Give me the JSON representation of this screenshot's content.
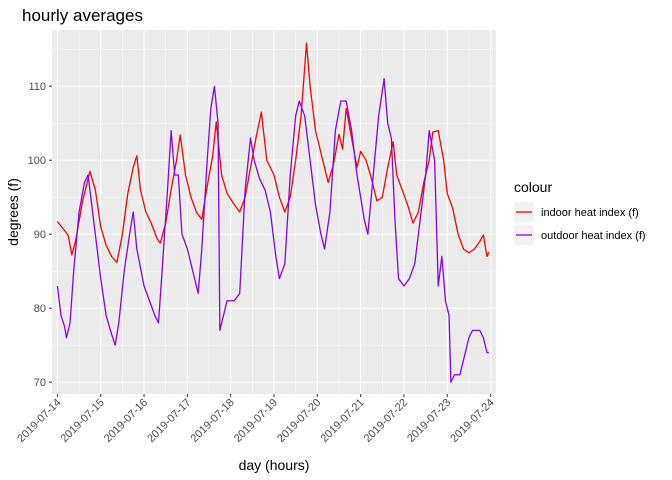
{
  "chart_data": {
    "type": "line",
    "title": "hourly averages",
    "xlabel": "day (hours)",
    "ylabel": "degrees (f)",
    "legend_title": "colour",
    "legend_position": "right",
    "grid": true,
    "xlim": [
      "2019-07-13T21:00",
      "2019-07-24T03:00"
    ],
    "ylim": [
      68.4,
      117.6
    ],
    "x_ticks": [
      "2019-07-14",
      "2019-07-15",
      "2019-07-16",
      "2019-07-17",
      "2019-07-18",
      "2019-07-19",
      "2019-07-20",
      "2019-07-21",
      "2019-07-22",
      "2019-07-23",
      "2019-07-24"
    ],
    "y_ticks": [
      70,
      80,
      90,
      100,
      110
    ],
    "series": [
      {
        "name": "indoor heat index (f)",
        "color": "#ff0000",
        "points": [
          [
            "2019-07-14T00:00",
            91.7
          ],
          [
            "2019-07-14T03:00",
            90.8
          ],
          [
            "2019-07-14T06:00",
            89.8
          ],
          [
            "2019-07-14T08:00",
            87.2
          ],
          [
            "2019-07-14T10:00",
            89.0
          ],
          [
            "2019-07-14T14:00",
            94.5
          ],
          [
            "2019-07-14T18:00",
            98.5
          ],
          [
            "2019-07-14T21:00",
            96.0
          ],
          [
            "2019-07-15T00:00",
            91.0
          ],
          [
            "2019-07-15T03:00",
            88.5
          ],
          [
            "2019-07-15T06:00",
            87.0
          ],
          [
            "2019-07-15T09:00",
            86.2
          ],
          [
            "2019-07-15T12:00",
            90.0
          ],
          [
            "2019-07-15T15:00",
            95.5
          ],
          [
            "2019-07-15T18:00",
            99.0
          ],
          [
            "2019-07-15T20:00",
            100.6
          ],
          [
            "2019-07-15T22:00",
            96.0
          ],
          [
            "2019-07-16T01:00",
            93.0
          ],
          [
            "2019-07-16T04:00",
            91.5
          ],
          [
            "2019-07-16T07:00",
            89.5
          ],
          [
            "2019-07-16T09:00",
            88.8
          ],
          [
            "2019-07-16T12:00",
            91.5
          ],
          [
            "2019-07-16T15:00",
            96.0
          ],
          [
            "2019-07-16T18:00",
            100.0
          ],
          [
            "2019-07-16T20:00",
            103.4
          ],
          [
            "2019-07-16T23:00",
            98.0
          ],
          [
            "2019-07-17T02:00",
            95.0
          ],
          [
            "2019-07-17T05:00",
            93.0
          ],
          [
            "2019-07-17T08:00",
            92.0
          ],
          [
            "2019-07-17T11:00",
            96.5
          ],
          [
            "2019-07-17T14:00",
            100.5
          ],
          [
            "2019-07-17T16:00",
            105.2
          ],
          [
            "2019-07-17T19:00",
            98.0
          ],
          [
            "2019-07-17T22:00",
            95.5
          ],
          [
            "2019-07-18T02:00",
            94.0
          ],
          [
            "2019-07-18T05:00",
            93.0
          ],
          [
            "2019-07-18T08:00",
            95.0
          ],
          [
            "2019-07-18T11:00",
            99.0
          ],
          [
            "2019-07-18T14:00",
            103.0
          ],
          [
            "2019-07-18T17:00",
            106.5
          ],
          [
            "2019-07-18T20:00",
            100.0
          ],
          [
            "2019-07-19T00:00",
            98.0
          ],
          [
            "2019-07-19T03:00",
            95.0
          ],
          [
            "2019-07-19T06:00",
            93.0
          ],
          [
            "2019-07-19T09:00",
            95.0
          ],
          [
            "2019-07-19T12:00",
            100.0
          ],
          [
            "2019-07-19T15:00",
            106.0
          ],
          [
            "2019-07-19T18:00",
            115.8
          ],
          [
            "2019-07-19T20:00",
            110.0
          ],
          [
            "2019-07-19T23:00",
            104.0
          ],
          [
            "2019-07-20T03:00",
            100.0
          ],
          [
            "2019-07-20T06:00",
            97.0
          ],
          [
            "2019-07-20T09:00",
            99.5
          ],
          [
            "2019-07-20T12:00",
            103.5
          ],
          [
            "2019-07-20T14:00",
            101.5
          ],
          [
            "2019-07-20T16:00",
            107.0
          ],
          [
            "2019-07-20T19:00",
            103.0
          ],
          [
            "2019-07-20T22:00",
            99.0
          ],
          [
            "2019-07-21T00:00",
            101.2
          ],
          [
            "2019-07-21T03:00",
            100.0
          ],
          [
            "2019-07-21T06:00",
            97.5
          ],
          [
            "2019-07-21T09:00",
            94.5
          ],
          [
            "2019-07-21T12:00",
            95.0
          ],
          [
            "2019-07-21T15:00",
            99.0
          ],
          [
            "2019-07-21T18:00",
            102.5
          ],
          [
            "2019-07-21T20:00",
            98.0
          ],
          [
            "2019-07-21T23:00",
            96.0
          ],
          [
            "2019-07-22T02:00",
            94.0
          ],
          [
            "2019-07-22T05:00",
            91.5
          ],
          [
            "2019-07-22T08:00",
            93.0
          ],
          [
            "2019-07-22T11:00",
            97.0
          ],
          [
            "2019-07-22T14:00",
            100.0
          ],
          [
            "2019-07-22T16:00",
            103.8
          ],
          [
            "2019-07-22T19:00",
            104.0
          ],
          [
            "2019-07-22T22:00",
            100.0
          ],
          [
            "2019-07-23T00:00",
            95.5
          ],
          [
            "2019-07-23T03:00",
            93.5
          ],
          [
            "2019-07-23T06:00",
            90.0
          ],
          [
            "2019-07-23T09:00",
            88.0
          ],
          [
            "2019-07-23T12:00",
            87.5
          ],
          [
            "2019-07-23T15:00",
            88.0
          ],
          [
            "2019-07-23T18:00",
            89.0
          ],
          [
            "2019-07-23T20:00",
            89.9
          ],
          [
            "2019-07-23T22:00",
            87.0
          ],
          [
            "2019-07-23T23:00",
            87.6
          ]
        ]
      },
      {
        "name": "outdoor heat index (f)",
        "color": "#8b00ee",
        "points": [
          [
            "2019-07-14T00:00",
            83.0
          ],
          [
            "2019-07-14T02:00",
            79.0
          ],
          [
            "2019-07-14T04:00",
            77.5
          ],
          [
            "2019-07-14T05:00",
            76.0
          ],
          [
            "2019-07-14T07:00",
            78.0
          ],
          [
            "2019-07-14T09:00",
            85.0
          ],
          [
            "2019-07-14T12:00",
            93.0
          ],
          [
            "2019-07-14T15:00",
            97.0
          ],
          [
            "2019-07-14T17:00",
            98.0
          ],
          [
            "2019-07-14T20:00",
            92.0
          ],
          [
            "2019-07-15T00:00",
            84.0
          ],
          [
            "2019-07-15T03:00",
            79.0
          ],
          [
            "2019-07-15T06:00",
            76.5
          ],
          [
            "2019-07-15T08:00",
            75.0
          ],
          [
            "2019-07-15T10:00",
            78.0
          ],
          [
            "2019-07-15T13:00",
            85.0
          ],
          [
            "2019-07-15T16:00",
            90.0
          ],
          [
            "2019-07-15T18:00",
            93.0
          ],
          [
            "2019-07-15T20:00",
            88.0
          ],
          [
            "2019-07-16T00:00",
            83.0
          ],
          [
            "2019-07-16T03:00",
            81.0
          ],
          [
            "2019-07-16T06:00",
            79.0
          ],
          [
            "2019-07-16T08:00",
            78.0
          ],
          [
            "2019-07-16T10:00",
            85.0
          ],
          [
            "2019-07-16T13:00",
            96.0
          ],
          [
            "2019-07-16T15:00",
            104.0
          ],
          [
            "2019-07-16T17:00",
            98.0
          ],
          [
            "2019-07-16T19:00",
            98.0
          ],
          [
            "2019-07-16T21:00",
            90.0
          ],
          [
            "2019-07-17T00:00",
            88.0
          ],
          [
            "2019-07-17T03:00",
            85.0
          ],
          [
            "2019-07-17T06:00",
            82.0
          ],
          [
            "2019-07-17T08:00",
            88.0
          ],
          [
            "2019-07-17T11:00",
            100.0
          ],
          [
            "2019-07-17T13:00",
            107.0
          ],
          [
            "2019-07-17T15:00",
            110.0
          ],
          [
            "2019-07-17T17:00",
            105.0
          ],
          [
            "2019-07-17T18:00",
            77.0
          ],
          [
            "2019-07-17T20:00",
            79.0
          ],
          [
            "2019-07-17T22:00",
            81.0
          ],
          [
            "2019-07-18T02:00",
            81.0
          ],
          [
            "2019-07-18T05:00",
            82.0
          ],
          [
            "2019-07-18T08:00",
            96.0
          ],
          [
            "2019-07-18T11:00",
            103.0
          ],
          [
            "2019-07-18T13:00",
            100.0
          ],
          [
            "2019-07-18T16:00",
            97.5
          ],
          [
            "2019-07-18T19:00",
            96.0
          ],
          [
            "2019-07-18T22:00",
            93.0
          ],
          [
            "2019-07-19T01:00",
            87.0
          ],
          [
            "2019-07-19T03:00",
            84.0
          ],
          [
            "2019-07-19T06:00",
            86.0
          ],
          [
            "2019-07-19T09:00",
            98.0
          ],
          [
            "2019-07-19T12:00",
            106.0
          ],
          [
            "2019-07-19T14:00",
            108.0
          ],
          [
            "2019-07-19T17:00",
            106.0
          ],
          [
            "2019-07-19T20:00",
            100.0
          ],
          [
            "2019-07-19T23:00",
            94.0
          ],
          [
            "2019-07-20T02:00",
            90.0
          ],
          [
            "2019-07-20T04:00",
            88.0
          ],
          [
            "2019-07-20T07:00",
            93.0
          ],
          [
            "2019-07-20T10:00",
            104.0
          ],
          [
            "2019-07-20T13:00",
            108.0
          ],
          [
            "2019-07-20T16:00",
            108.0
          ],
          [
            "2019-07-20T19:00",
            104.0
          ],
          [
            "2019-07-20T22:00",
            98.0
          ],
          [
            "2019-07-21T02:00",
            92.0
          ],
          [
            "2019-07-21T04:00",
            90.0
          ],
          [
            "2019-07-21T07:00",
            98.0
          ],
          [
            "2019-07-21T10:00",
            106.0
          ],
          [
            "2019-07-21T13:00",
            111.0
          ],
          [
            "2019-07-21T15:00",
            105.0
          ],
          [
            "2019-07-21T17:00",
            103.0
          ],
          [
            "2019-07-21T19:00",
            92.0
          ],
          [
            "2019-07-21T21:00",
            84.0
          ],
          [
            "2019-07-22T00:00",
            83.0
          ],
          [
            "2019-07-22T03:00",
            84.0
          ],
          [
            "2019-07-22T06:00",
            86.0
          ],
          [
            "2019-07-22T09:00",
            92.0
          ],
          [
            "2019-07-22T12:00",
            98.0
          ],
          [
            "2019-07-22T14:00",
            104.0
          ],
          [
            "2019-07-22T17:00",
            100.0
          ],
          [
            "2019-07-22T19:00",
            83.0
          ],
          [
            "2019-07-22T21:00",
            87.0
          ],
          [
            "2019-07-22T23:00",
            81.0
          ],
          [
            "2019-07-23T01:00",
            79.0
          ],
          [
            "2019-07-23T02:00",
            70.0
          ],
          [
            "2019-07-23T04:00",
            71.0
          ],
          [
            "2019-07-23T07:00",
            71.0
          ],
          [
            "2019-07-23T10:00",
            74.0
          ],
          [
            "2019-07-23T12:00",
            76.0
          ],
          [
            "2019-07-23T14:00",
            77.0
          ],
          [
            "2019-07-23T18:00",
            77.0
          ],
          [
            "2019-07-23T20:00",
            76.0
          ],
          [
            "2019-07-23T22:00",
            74.0
          ],
          [
            "2019-07-23T23:00",
            74.0
          ]
        ]
      }
    ]
  }
}
